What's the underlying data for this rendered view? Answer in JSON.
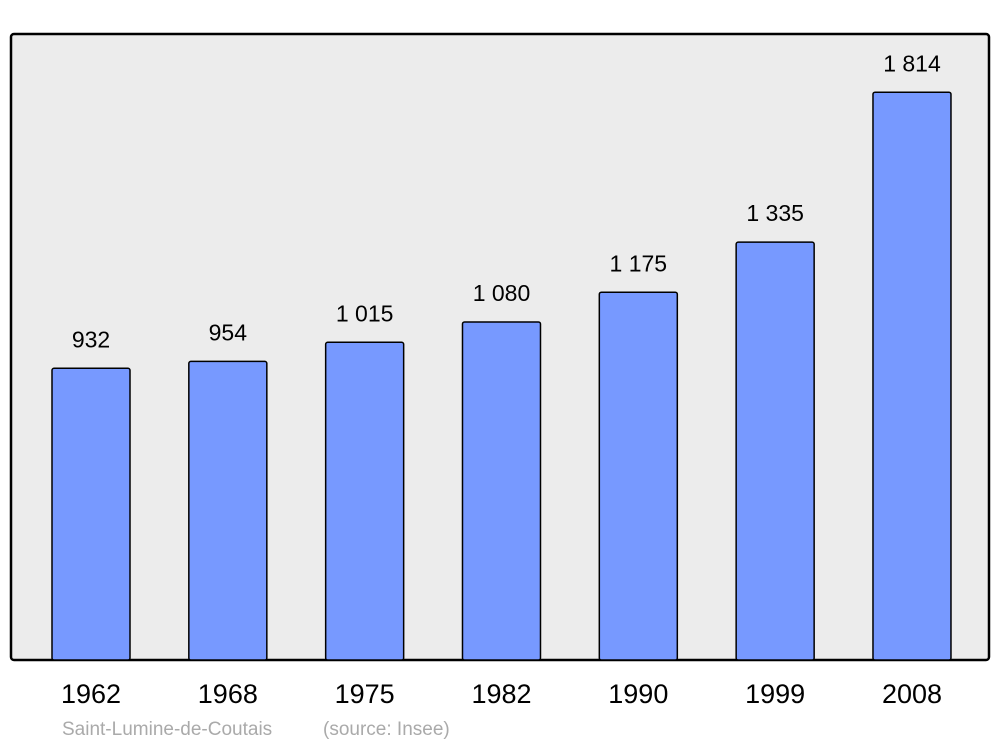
{
  "chart_data": {
    "type": "bar",
    "categories": [
      "1962",
      "1968",
      "1975",
      "1982",
      "1990",
      "1999",
      "2008"
    ],
    "values": [
      932,
      954,
      1015,
      1080,
      1175,
      1335,
      1814
    ],
    "value_labels": [
      "932",
      "954",
      "1 015",
      "1 080",
      "1 175",
      "1 335",
      "1 814"
    ],
    "color": "#7799ff",
    "ylim": [
      0,
      2000
    ],
    "caption": "Saint-Lumine-de-Coutais",
    "source": "(source: Insee)"
  }
}
